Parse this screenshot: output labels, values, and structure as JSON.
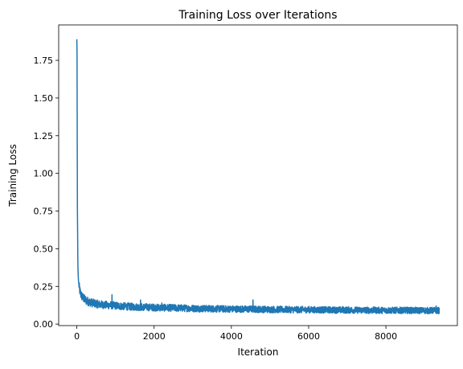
{
  "chart_data": {
    "type": "line",
    "title": "Training Loss over Iterations",
    "xlabel": "Iteration",
    "ylabel": "Training Loss",
    "xlim": [
      -470,
      9850
    ],
    "ylim": [
      -0.01,
      1.985
    ],
    "xticks": [
      0,
      2000,
      4000,
      6000,
      8000
    ],
    "xtick_labels": [
      "0",
      "2000",
      "4000",
      "6000",
      "8000"
    ],
    "yticks": [
      0.0,
      0.25,
      0.5,
      0.75,
      1.0,
      1.25,
      1.5,
      1.75
    ],
    "ytick_labels": [
      "0.00",
      "0.25",
      "0.50",
      "0.75",
      "1.00",
      "1.25",
      "1.50",
      "1.75"
    ],
    "grid": false,
    "legend": "none",
    "series": [
      {
        "color": "#1f77b4",
        "x_start": 0,
        "x_end": 9380,
        "x": [
          0,
          5,
          10,
          15,
          20,
          25,
          30,
          35,
          40,
          45,
          50,
          60,
          70,
          80,
          90,
          100,
          120,
          140,
          160,
          180,
          200,
          250,
          300,
          350,
          400,
          500,
          600,
          700,
          800,
          900,
          1000,
          1200,
          1400,
          1600,
          1800,
          2000,
          2500,
          3000,
          3500,
          4000,
          4500,
          5000,
          5500,
          6000,
          6500,
          7000,
          7500,
          8000,
          8500,
          9000,
          9380
        ],
        "y": [
          1.89,
          1.8,
          1.26,
          0.76,
          0.62,
          0.45,
          0.36,
          0.33,
          0.3,
          0.28,
          0.27,
          0.25,
          0.23,
          0.22,
          0.21,
          0.2,
          0.19,
          0.18,
          0.175,
          0.17,
          0.165,
          0.155,
          0.15,
          0.145,
          0.14,
          0.135,
          0.13,
          0.128,
          0.125,
          0.125,
          0.122,
          0.118,
          0.115,
          0.113,
          0.112,
          0.11,
          0.107,
          0.104,
          0.102,
          0.1,
          0.099,
          0.097,
          0.096,
          0.095,
          0.094,
          0.093,
          0.092,
          0.091,
          0.091,
          0.09,
          0.09
        ],
        "noise_amplitude": 0.05,
        "spikes": [
          {
            "x": 910,
            "y": 0.195
          },
          {
            "x": 1650,
            "y": 0.16
          },
          {
            "x": 2200,
            "y": 0.14
          },
          {
            "x": 4560,
            "y": 0.16
          },
          {
            "x": 9300,
            "y": 0.12
          }
        ]
      }
    ]
  }
}
